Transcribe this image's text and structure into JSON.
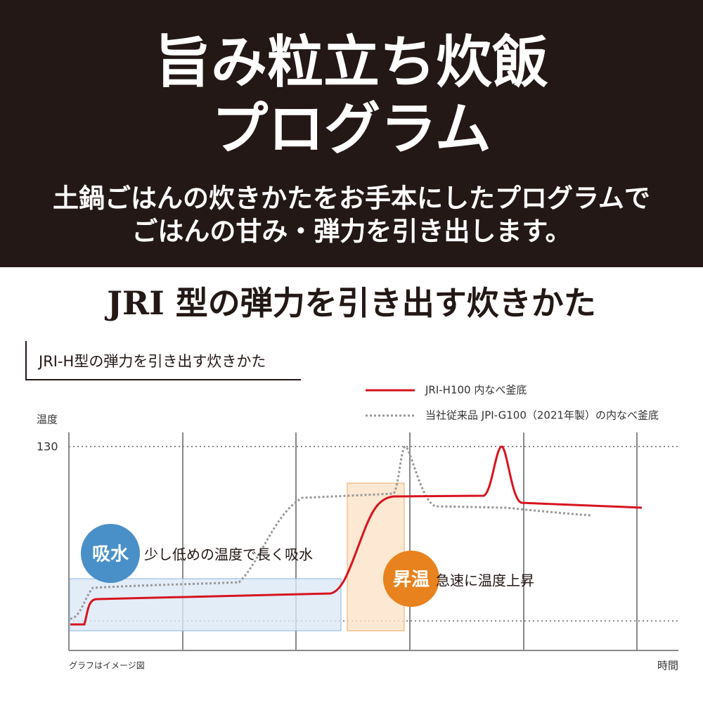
{
  "header": {
    "title_lines": [
      "旨み粒立ち炊飯",
      "プログラム"
    ],
    "subtitle_lines": [
      "土鍋ごはんの炊きかたをお手本にしたプログラムで",
      "ごはんの甘み・弾力を引き出します。"
    ]
  },
  "section_title": "JRI 型の弾力を引き出す炊きかた",
  "graph": {
    "title": "JRI-H型の弾力を引き出す炊きかた",
    "legend": [
      "JRI-H100 内なべ釜底",
      "当社従来品 JPI-G100（2021年製）の内なべ釜底"
    ],
    "y_label": "温度",
    "y_tick": "130",
    "x_label": "時間",
    "note": "グラフはイメージ図",
    "phases": [
      {
        "badge": "吸水",
        "text": "少し低めの温度で長く吸水"
      },
      {
        "badge": "昇温",
        "text": "急速に温度上昇"
      }
    ]
  }
}
